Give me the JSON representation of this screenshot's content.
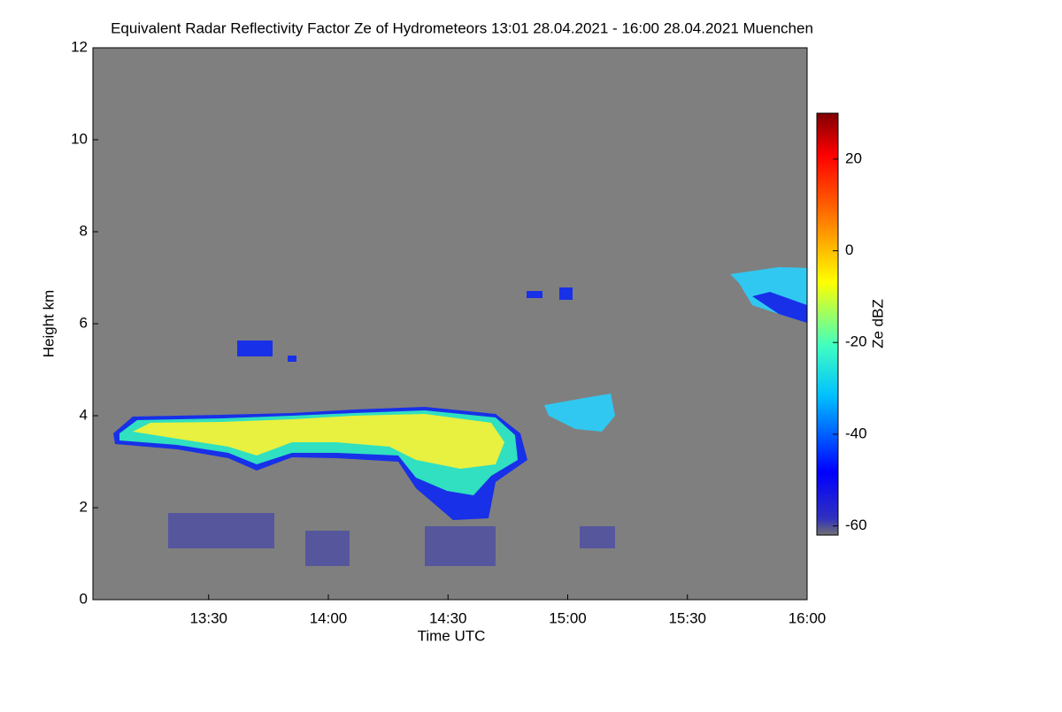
{
  "chart_data": {
    "type": "heatmap",
    "title": "Equivalent Radar Reflectivity Factor Ze of Hydrometeors   13:01 28.04.2021 - 16:00 28.04.2021 Muenchen",
    "xlabel": "Time UTC",
    "ylabel": "Height km",
    "colorbar_label": "Ze dBZ",
    "xlim": [
      781,
      960
    ],
    "xticks": [
      {
        "value": 810,
        "label": "13:30"
      },
      {
        "value": 840,
        "label": "14:00"
      },
      {
        "value": 870,
        "label": "14:30"
      },
      {
        "value": 900,
        "label": "15:00"
      },
      {
        "value": 930,
        "label": "15:30"
      },
      {
        "value": 960,
        "label": "16:00"
      }
    ],
    "ylim": [
      0,
      12
    ],
    "yticks": [
      0,
      2,
      4,
      6,
      8,
      10,
      12
    ],
    "zlim": [
      -62,
      30
    ],
    "zticks": [
      -60,
      -40,
      -20,
      0,
      20
    ],
    "background": "#7f7f7f"
  }
}
